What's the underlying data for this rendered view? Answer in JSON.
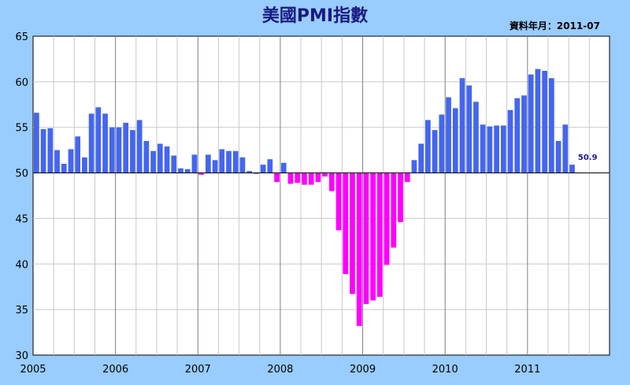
{
  "title": "美國PMI指數",
  "date_note": "資料年月：2011-07",
  "colors": {
    "background": "#99ccff",
    "plot_bg": "#ffffff",
    "positive": "#4466ee",
    "negative": "#ff00ff",
    "grid": "#c8c8c8",
    "year_line": "#808080"
  },
  "chart_data": {
    "type": "bar",
    "title": "美國PMI指數",
    "baseline": 50,
    "ylim": [
      30,
      65
    ],
    "yticks": [
      30,
      35,
      40,
      45,
      50,
      55,
      60,
      65
    ],
    "xticks": [
      "2005",
      "2006",
      "2007",
      "2008",
      "2009",
      "2010",
      "2011"
    ],
    "grid": true,
    "last_label": "50.9",
    "series": [
      {
        "year": "2005",
        "values": [
          56.6,
          54.8,
          54.9,
          52.5,
          51.0,
          52.6,
          54.0,
          51.7,
          56.5,
          57.2,
          56.5,
          55.0
        ]
      },
      {
        "year": "2006",
        "values": [
          55.0,
          55.5,
          54.7,
          55.8,
          53.5,
          52.4,
          53.2,
          52.9,
          51.9,
          50.5,
          50.4,
          52.0
        ]
      },
      {
        "year": "2007",
        "values": [
          49.8,
          52.0,
          51.4,
          52.6,
          52.4,
          52.4,
          51.7,
          50.2,
          50.0,
          50.9,
          51.5,
          49.0
        ]
      },
      {
        "year": "2008",
        "values": [
          51.1,
          48.8,
          48.9,
          48.7,
          48.7,
          49.0,
          49.6,
          48.0,
          43.7,
          38.9,
          36.7,
          33.2
        ]
      },
      {
        "year": "2009",
        "values": [
          35.6,
          36.0,
          36.4,
          39.9,
          41.8,
          44.6,
          49.0,
          51.4,
          53.2,
          55.8,
          54.7,
          56.4
        ]
      },
      {
        "year": "2010",
        "values": [
          58.3,
          57.1,
          60.4,
          59.6,
          57.8,
          55.3,
          55.1,
          55.2,
          55.2,
          56.9,
          58.2,
          58.5
        ]
      },
      {
        "year": "2011",
        "values": [
          60.8,
          61.4,
          61.2,
          60.4,
          53.5,
          55.3,
          50.9
        ]
      }
    ]
  }
}
